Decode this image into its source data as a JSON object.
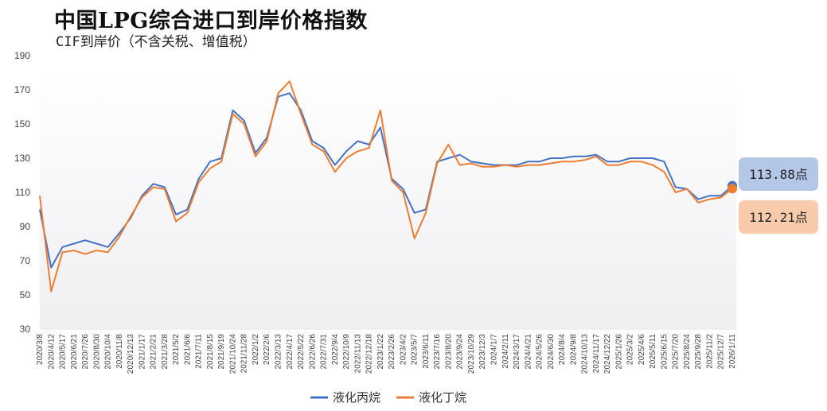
{
  "title": "中国LPG综合进口到岸价格指数",
  "subtitle": "CIF到岸价（不含关税、增值税）",
  "chart_data": {
    "type": "line",
    "title": "中国LPG综合进口到岸价格指数",
    "subtitle": "CIF到岸价（不含关税、增值税）",
    "xlabel": "",
    "ylabel": "",
    "ylim": [
      30,
      190
    ],
    "yticks": [
      30,
      50,
      70,
      90,
      110,
      130,
      150,
      170,
      190
    ],
    "xticks": [
      "2020/3/8",
      "2020/4/12",
      "2020/5/17",
      "2020/6/21",
      "2020/7/26",
      "2020/8/30",
      "2020/10/4",
      "2020/11/8",
      "2020/12/13",
      "2021/1/17",
      "2021/2/21",
      "2021/3/28",
      "2021/5/2",
      "2021/6/6",
      "2021/7/11",
      "2021/8/15",
      "2021/9/19",
      "2021/10/24",
      "2021/11/28",
      "2022/1/2",
      "2022/2/6",
      "2022/3/13",
      "2022/4/17",
      "2022/5/22",
      "2022/6/26",
      "2022/7/31",
      "2022/9/4",
      "2022/10/9",
      "2022/11/13",
      "2022/12/18",
      "2023/1/22",
      "2023/2/26",
      "2023/4/2",
      "2023/5/7",
      "2023/6/11",
      "2023/7/16",
      "2023/8/20",
      "2023/9/24",
      "2023/10/29",
      "2023/12/3",
      "2024/1/7",
      "2024/2/11",
      "2024/3/17",
      "2024/4/21",
      "2024/5/26",
      "2024/6/30",
      "2024/8/4",
      "2024/9/8",
      "2024/10/13",
      "2024/11/17",
      "2024/12/22",
      "2025/1/26",
      "2025/3/2",
      "2025/4/6",
      "2025/5/11",
      "2025/6/15",
      "2025/7/20",
      "2025/8/24",
      "2025/9/28",
      "2025/11/2",
      "2025/12/7",
      "2026/1/11"
    ],
    "legend_position": "bottom",
    "grid": false,
    "series": [
      {
        "name": "液化丙烷",
        "color": "#4472C4",
        "x": [
          "2020/3/8",
          "2020/4/12",
          "2020/5/17",
          "2020/6/21",
          "2020/7/26",
          "2020/8/30",
          "2020/10/4",
          "2020/11/8",
          "2020/12/13",
          "2021/1/17",
          "2021/2/21",
          "2021/3/28",
          "2021/5/2",
          "2021/6/6",
          "2021/7/11",
          "2021/8/15",
          "2021/9/19",
          "2021/10/24",
          "2021/11/28",
          "2022/1/2",
          "2022/2/6",
          "2022/3/13",
          "2022/4/17",
          "2022/5/22",
          "2022/6/26",
          "2022/7/31",
          "2022/9/4",
          "2022/10/9",
          "2022/11/13",
          "2022/12/18",
          "2023/1/22",
          "2023/2/26",
          "2023/4/2",
          "2023/5/7",
          "2023/6/11",
          "2023/7/16",
          "2023/8/20",
          "2023/9/24",
          "2023/10/29",
          "2023/12/3",
          "2024/1/7",
          "2024/2/11",
          "2024/3/17",
          "2024/4/21",
          "2024/5/26",
          "2024/6/30",
          "2024/8/4",
          "2024/9/8",
          "2024/10/13",
          "2024/11/17",
          "2024/12/22",
          "2025/1/26",
          "2025/3/2",
          "2025/4/6",
          "2025/5/11",
          "2025/6/15",
          "2025/7/20",
          "2025/8/24",
          "2025/9/28",
          "2025/11/2",
          "2025/12/7",
          "2026/1/11"
        ],
        "values": [
          100,
          66,
          78,
          80,
          82,
          80,
          78,
          86,
          95,
          108,
          115,
          113,
          97,
          100,
          118,
          128,
          130,
          158,
          152,
          133,
          142,
          166,
          168,
          158,
          140,
          136,
          126,
          134,
          140,
          138,
          148,
          118,
          112,
          98,
          100,
          128,
          130,
          132,
          128,
          127,
          126,
          126,
          126,
          128,
          128,
          130,
          130,
          131,
          131,
          132,
          128,
          128,
          130,
          130,
          130,
          128,
          113,
          112,
          106,
          108,
          108,
          113.88
        ]
      },
      {
        "name": "液化丁烷",
        "color": "#ED7D31",
        "x": [
          "2020/3/8",
          "2020/4/12",
          "2020/5/17",
          "2020/6/21",
          "2020/7/26",
          "2020/8/30",
          "2020/10/4",
          "2020/11/8",
          "2020/12/13",
          "2021/1/17",
          "2021/2/21",
          "2021/3/28",
          "2021/5/2",
          "2021/6/6",
          "2021/7/11",
          "2021/8/15",
          "2021/9/19",
          "2021/10/24",
          "2021/11/28",
          "2022/1/2",
          "2022/2/6",
          "2022/3/13",
          "2022/4/17",
          "2022/5/22",
          "2022/6/26",
          "2022/7/31",
          "2022/9/4",
          "2022/10/9",
          "2022/11/13",
          "2022/12/18",
          "2023/1/22",
          "2023/2/26",
          "2023/4/2",
          "2023/5/7",
          "2023/6/11",
          "2023/7/16",
          "2023/8/20",
          "2023/9/24",
          "2023/10/29",
          "2023/12/3",
          "2024/1/7",
          "2024/2/11",
          "2024/3/17",
          "2024/4/21",
          "2024/5/26",
          "2024/6/30",
          "2024/8/4",
          "2024/9/8",
          "2024/10/13",
          "2024/11/17",
          "2024/12/22",
          "2025/1/26",
          "2025/3/2",
          "2025/4/6",
          "2025/5/11",
          "2025/6/15",
          "2025/7/20",
          "2025/8/24",
          "2025/9/28",
          "2025/11/2",
          "2025/12/7",
          "2026/1/11"
        ],
        "values": [
          108,
          52,
          75,
          76,
          74,
          76,
          75,
          84,
          96,
          107,
          113,
          112,
          93,
          98,
          116,
          124,
          128,
          156,
          150,
          131,
          140,
          168,
          175,
          156,
          138,
          134,
          122,
          130,
          134,
          136,
          158,
          117,
          110,
          83,
          98,
          127,
          138,
          126,
          127,
          125,
          125,
          126,
          125,
          126,
          126,
          127,
          128,
          128,
          129,
          131,
          126,
          126,
          128,
          128,
          126,
          122,
          110,
          112,
          104,
          106,
          107,
          112.21
        ]
      }
    ],
    "annotations": [
      {
        "series": "液化丙烷",
        "label": "113.88点",
        "value": 113.88,
        "x": "2026/1/11"
      },
      {
        "series": "液化丁烷",
        "label": "112.21点",
        "value": 112.21,
        "x": "2026/1/11"
      }
    ]
  }
}
